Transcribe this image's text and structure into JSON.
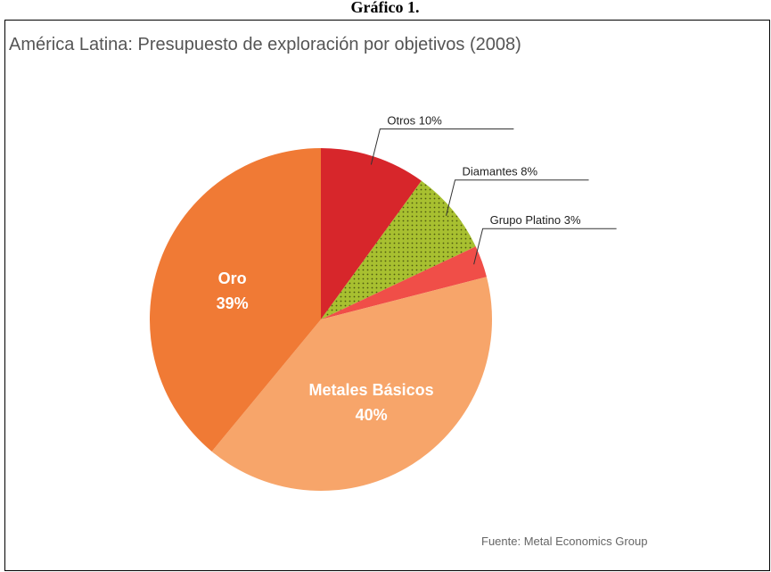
{
  "caption": "Gráfico 1.",
  "chart_data": {
    "type": "pie",
    "title": "América Latina: Presupuesto de exploración por objetivos (2008)",
    "categories": [
      "Otros",
      "Diamantes",
      "Grupo Platino",
      "Metales Básicos",
      "Oro"
    ],
    "values": [
      10,
      8,
      3,
      40,
      39
    ],
    "value_labels": [
      "10%",
      "8%",
      "3%",
      "40%",
      "39%"
    ],
    "colors": [
      "#d7262b",
      "#a8c030",
      "#f04e48",
      "#f7a56a",
      "#f07a35"
    ],
    "label_position": [
      "outside",
      "outside",
      "outside",
      "inside",
      "inside"
    ],
    "source": "Fuente: Metal Economics Group"
  }
}
